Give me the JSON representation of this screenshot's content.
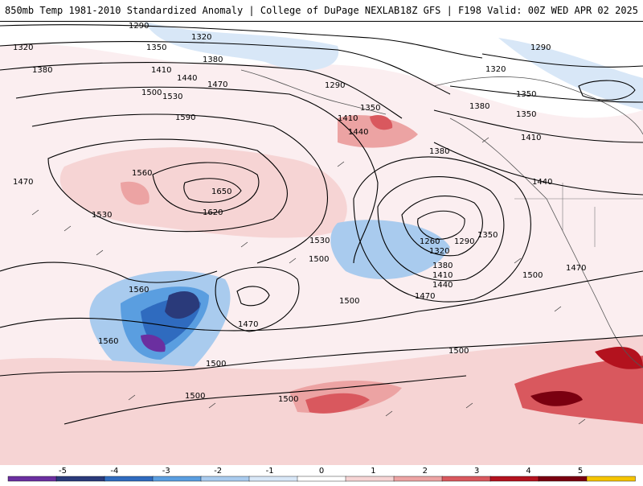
{
  "header": {
    "left_title": "850mb Temp 1981-2010 Standardized Anomaly | College of DuPage NEXLAB",
    "right_title": "18Z GFS | F198 Valid: 00Z WED APR 02 2025"
  },
  "map": {
    "contour_labels": [
      "1290",
      "1320",
      "1350",
      "1380",
      "1410",
      "1440",
      "1470",
      "1500",
      "1530",
      "1560",
      "1590",
      "1620",
      "1650",
      "1260",
      "1290",
      "1320",
      "1350",
      "1380",
      "1410",
      "1440",
      "1470",
      "1500",
      "1530",
      "1560",
      "1470",
      "1500",
      "1500",
      "1500",
      "1500",
      "1290",
      "1320",
      "1350",
      "1380",
      "1410",
      "1440",
      "1470",
      "1500",
      "1350",
      "1410",
      "1440",
      "1380",
      "1290",
      "1320",
      "1380",
      "1350",
      "1470",
      "1530",
      "1560",
      "1500"
    ]
  },
  "colorbar": {
    "tick_labels": [
      "-5",
      "-4",
      "-3",
      "-2",
      "-1",
      "0",
      "1",
      "2",
      "3",
      "4",
      "5"
    ],
    "colors": [
      "#6b2fa0",
      "#2a3a7a",
      "#2f6bbf",
      "#5a9ee0",
      "#a9cbee",
      "#d8e7f7",
      "#ffffff",
      "#f6d4d4",
      "#eca3a3",
      "#d9585e",
      "#b3121e",
      "#7a0010",
      "#f5c400"
    ]
  }
}
